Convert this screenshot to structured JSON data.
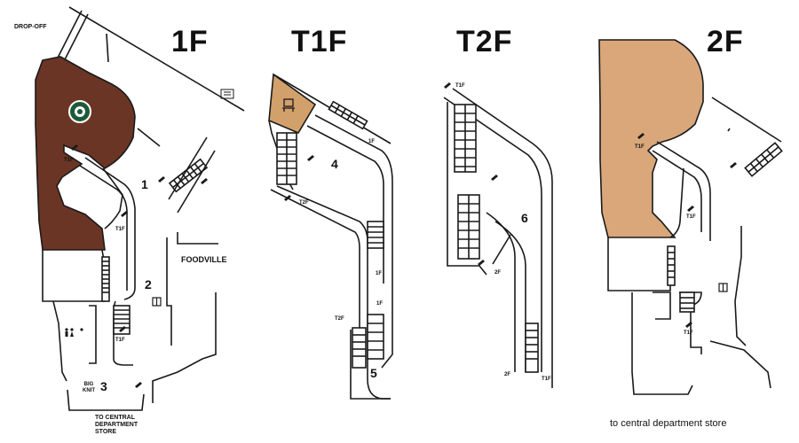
{
  "floors": [
    {
      "name": "1F"
    },
    {
      "name": "T1F"
    },
    {
      "name": "T2F"
    },
    {
      "name": "2F"
    }
  ],
  "labels": {
    "drop_off": "DROP-OFF",
    "foodville": "FOODVILLE",
    "big_knit": "BIG\nKNIT",
    "to_central_caps": "TO CENTRAL\nDEPARTMENT\nSTORE",
    "to_central_lower": "to central department store"
  },
  "zones": [
    "1",
    "2",
    "3",
    "4",
    "5",
    "6"
  ],
  "stair_labels": {
    "1f_t1f_a": "T1F",
    "1f_t1f_b": "T1F",
    "1f_t1f_c": "T1F",
    "t1f_1f_a": "1F",
    "t1f_1f_b": "1F",
    "t1f_1f_c": "1F",
    "t1f_t2f_a": "T2F",
    "t1f_t2f_b": "T2F",
    "t2f_t1f_a": "T1F",
    "t2f_t1f_b": "T1F",
    "t2f_2f_a": "2F",
    "t2f_2f_b": "2F",
    "2f_t1f_a": "T1F",
    "2f_t1f_b": "T1F",
    "2f_t1f_c": "T1F"
  },
  "colors": {
    "floor_1f": "#6b3525",
    "floor_t1f": "#d2a06b",
    "floor_2f": "#d9a77a",
    "outline": "#1a1a1a",
    "starbucks_green": "#1e5a3a"
  },
  "icons": [
    "starbucks-logo-icon",
    "escalator-icon",
    "restroom-icon",
    "elevator-icon",
    "book-icon",
    "seat-icon",
    "parking-icon"
  ]
}
